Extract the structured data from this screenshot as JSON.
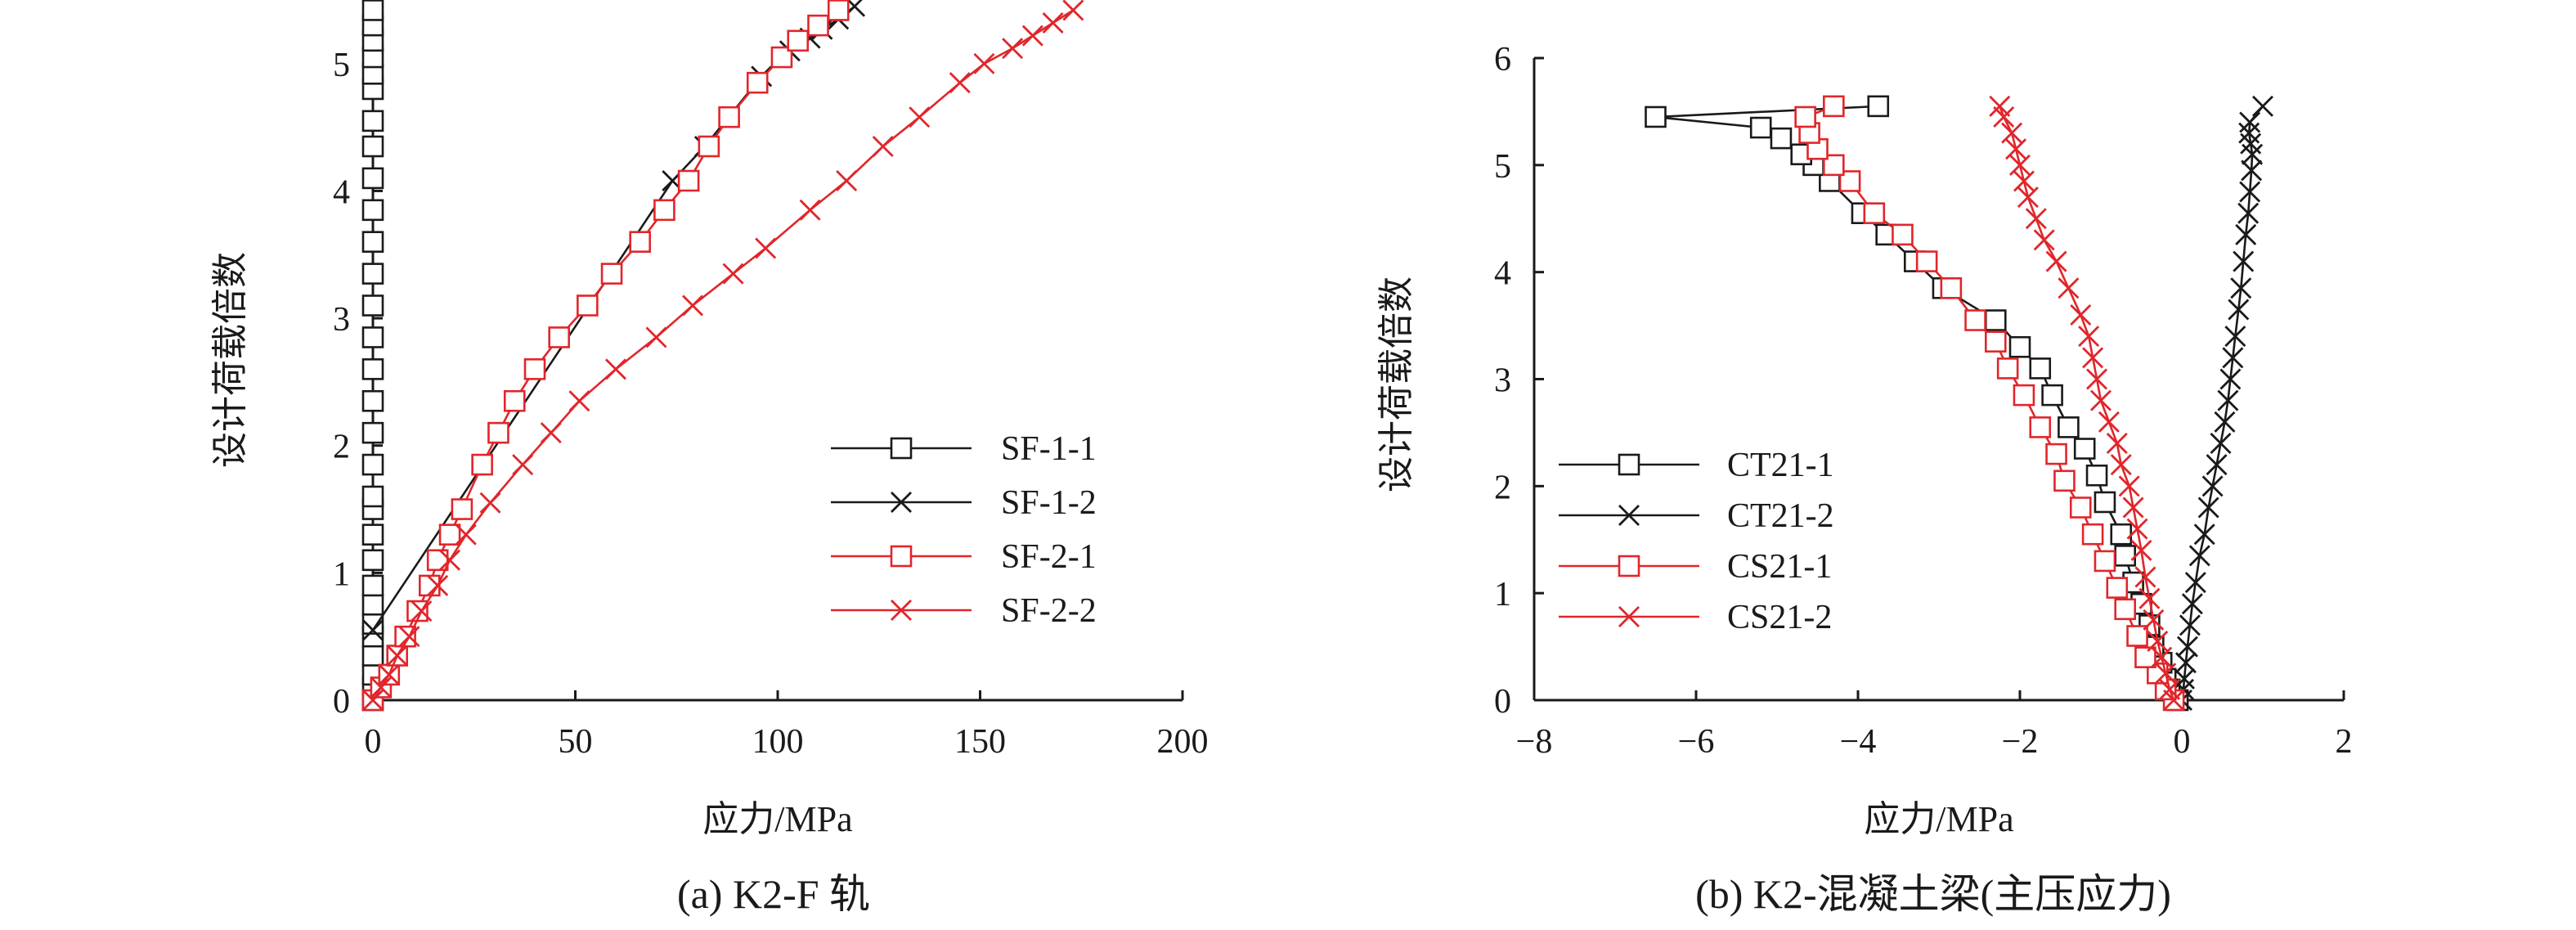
{
  "chart_data": [
    {
      "type": "line",
      "caption": "(a) K2-F 轨",
      "xlabel": "应力/MPa",
      "ylabel": "设计荷载倍数",
      "xlim": [
        0,
        200
      ],
      "ylim": [
        0,
        5.5
      ],
      "xticks": [
        0,
        50,
        100,
        150,
        200
      ],
      "yticks": [
        0,
        1,
        2,
        3,
        4,
        5
      ],
      "grid": false,
      "legend_position": "lower-right",
      "series": [
        {
          "name": "SF-1-1",
          "color": "#1a1a1a",
          "marker": "square",
          "points": [
            [
              0,
              0
            ],
            [
              0,
              0.1
            ],
            [
              0,
              0.2
            ],
            [
              0,
              0.35
            ],
            [
              0,
              0.5
            ],
            [
              0,
              0.6
            ],
            [
              0,
              0.75
            ],
            [
              0,
              0.9
            ],
            [
              0,
              1.1
            ],
            [
              0,
              1.3
            ],
            [
              0,
              1.5
            ],
            [
              0,
              1.6
            ],
            [
              0,
              1.85
            ],
            [
              0,
              2.1
            ],
            [
              0,
              2.35
            ],
            [
              0,
              2.6
            ],
            [
              0,
              2.85
            ],
            [
              0,
              3.1
            ],
            [
              0,
              3.35
            ],
            [
              0,
              3.6
            ],
            [
              0,
              3.85
            ],
            [
              0,
              4.1
            ],
            [
              0,
              4.35
            ],
            [
              0,
              4.55
            ],
            [
              0,
              4.8
            ],
            [
              0,
              4.92
            ],
            [
              0,
              5.05
            ],
            [
              0,
              5.18
            ],
            [
              0,
              5.3
            ],
            [
              0,
              5.42
            ]
          ]
        },
        {
          "name": "SF-1-2",
          "color": "#1a1a1a",
          "marker": "x",
          "points": [
            [
              0,
              0.55
            ],
            [
              74,
              4.08
            ],
            [
              82,
              4.35
            ],
            [
              96,
              4.9
            ],
            [
              103,
              5.1
            ],
            [
              108,
              5.2
            ],
            [
              111,
              5.27
            ],
            [
              115,
              5.35
            ],
            [
              119,
              5.45
            ]
          ]
        },
        {
          "name": "SF-2-1",
          "color": "#e0262b",
          "marker": "square",
          "points": [
            [
              0,
              0
            ],
            [
              2,
              0.1
            ],
            [
              4,
              0.2
            ],
            [
              6,
              0.35
            ],
            [
              8,
              0.5
            ],
            [
              11,
              0.7
            ],
            [
              14,
              0.9
            ],
            [
              16,
              1.1
            ],
            [
              19,
              1.3
            ],
            [
              22,
              1.5
            ],
            [
              27,
              1.85
            ],
            [
              31,
              2.1
            ],
            [
              35,
              2.35
            ],
            [
              40,
              2.6
            ],
            [
              46,
              2.85
            ],
            [
              53,
              3.1
            ],
            [
              59,
              3.35
            ],
            [
              66,
              3.6
            ],
            [
              72,
              3.85
            ],
            [
              78,
              4.08
            ],
            [
              83,
              4.35
            ],
            [
              88,
              4.58
            ],
            [
              95,
              4.85
            ],
            [
              101,
              5.05
            ],
            [
              105,
              5.18
            ],
            [
              110,
              5.3
            ],
            [
              115,
              5.42
            ]
          ]
        },
        {
          "name": "SF-2-2",
          "color": "#e0262b",
          "marker": "x",
          "points": [
            [
              0,
              0
            ],
            [
              2,
              0.1
            ],
            [
              4,
              0.2
            ],
            [
              6,
              0.35
            ],
            [
              9,
              0.5
            ],
            [
              12,
              0.7
            ],
            [
              16,
              0.9
            ],
            [
              19,
              1.1
            ],
            [
              23,
              1.3
            ],
            [
              29,
              1.55
            ],
            [
              37,
              1.85
            ],
            [
              44,
              2.1
            ],
            [
              51,
              2.35
            ],
            [
              60,
              2.6
            ],
            [
              70,
              2.85
            ],
            [
              79,
              3.1
            ],
            [
              89,
              3.35
            ],
            [
              97,
              3.55
            ],
            [
              108,
              3.85
            ],
            [
              117,
              4.08
            ],
            [
              126,
              4.35
            ],
            [
              135,
              4.58
            ],
            [
              145,
              4.85
            ],
            [
              151,
              5.0
            ],
            [
              158,
              5.12
            ],
            [
              163,
              5.22
            ],
            [
              168,
              5.32
            ],
            [
              173,
              5.42
            ]
          ]
        }
      ]
    },
    {
      "type": "line",
      "caption": "(b) K2-混凝土梁(主压应力)",
      "xlabel": "应力/MPa",
      "ylabel": "设计荷载倍数",
      "xlim": [
        -8,
        2
      ],
      "ylim": [
        0,
        6
      ],
      "xticks": [
        -8,
        -6,
        -4,
        -2,
        0,
        2
      ],
      "xtick_labels": [
        "−8",
        "−6",
        "−4",
        "−2",
        "0",
        "2"
      ],
      "yticks": [
        0,
        1,
        2,
        3,
        4,
        5,
        6
      ],
      "grid": false,
      "legend_position": "lower-left",
      "series": [
        {
          "name": "CT21-1",
          "color": "#1a1a1a",
          "marker": "square",
          "points": [
            [
              -0.05,
              0
            ],
            [
              -0.15,
              0.1
            ],
            [
              -0.2,
              0.2
            ],
            [
              -0.25,
              0.35
            ],
            [
              -0.35,
              0.5
            ],
            [
              -0.4,
              0.7
            ],
            [
              -0.5,
              0.9
            ],
            [
              -0.6,
              1.1
            ],
            [
              -0.7,
              1.35
            ],
            [
              -0.75,
              1.55
            ],
            [
              -0.95,
              1.85
            ],
            [
              -1.05,
              2.1
            ],
            [
              -1.2,
              2.35
            ],
            [
              -1.4,
              2.55
            ],
            [
              -1.6,
              2.85
            ],
            [
              -1.75,
              3.1
            ],
            [
              -2.0,
              3.3
            ],
            [
              -2.3,
              3.55
            ],
            [
              -2.95,
              3.85
            ],
            [
              -3.3,
              4.1
            ],
            [
              -3.65,
              4.35
            ],
            [
              -3.95,
              4.55
            ],
            [
              -4.35,
              4.85
            ],
            [
              -4.55,
              5.0
            ],
            [
              -4.7,
              5.1
            ],
            [
              -4.95,
              5.25
            ],
            [
              -5.2,
              5.35
            ],
            [
              -6.5,
              5.45
            ],
            [
              -3.75,
              5.55
            ]
          ]
        },
        {
          "name": "CT21-2",
          "color": "#1a1a1a",
          "marker": "x",
          "points": [
            [
              0,
              0
            ],
            [
              0.02,
              0.1
            ],
            [
              0.03,
              0.2
            ],
            [
              0.05,
              0.35
            ],
            [
              0.07,
              0.5
            ],
            [
              0.1,
              0.7
            ],
            [
              0.13,
              0.9
            ],
            [
              0.17,
              1.1
            ],
            [
              0.22,
              1.35
            ],
            [
              0.28,
              1.55
            ],
            [
              0.33,
              1.8
            ],
            [
              0.38,
              2.0
            ],
            [
              0.43,
              2.2
            ],
            [
              0.48,
              2.4
            ],
            [
              0.53,
              2.6
            ],
            [
              0.57,
              2.8
            ],
            [
              0.6,
              3.0
            ],
            [
              0.63,
              3.2
            ],
            [
              0.66,
              3.4
            ],
            [
              0.7,
              3.65
            ],
            [
              0.73,
              3.85
            ],
            [
              0.76,
              4.1
            ],
            [
              0.79,
              4.35
            ],
            [
              0.82,
              4.55
            ],
            [
              0.84,
              4.75
            ],
            [
              0.86,
              4.95
            ],
            [
              0.87,
              5.1
            ],
            [
              0.85,
              5.2
            ],
            [
              0.83,
              5.3
            ],
            [
              0.84,
              5.4
            ],
            [
              1.0,
              5.55
            ]
          ]
        },
        {
          "name": "CS21-1",
          "color": "#e0262b",
          "marker": "square",
          "points": [
            [
              -0.1,
              0
            ],
            [
              -0.2,
              0.1
            ],
            [
              -0.3,
              0.25
            ],
            [
              -0.45,
              0.4
            ],
            [
              -0.55,
              0.6
            ],
            [
              -0.7,
              0.85
            ],
            [
              -0.8,
              1.05
            ],
            [
              -0.95,
              1.3
            ],
            [
              -1.1,
              1.55
            ],
            [
              -1.25,
              1.8
            ],
            [
              -1.45,
              2.05
            ],
            [
              -1.55,
              2.3
            ],
            [
              -1.75,
              2.55
            ],
            [
              -1.95,
              2.85
            ],
            [
              -2.15,
              3.1
            ],
            [
              -2.3,
              3.35
            ],
            [
              -2.55,
              3.55
            ],
            [
              -2.85,
              3.85
            ],
            [
              -3.15,
              4.1
            ],
            [
              -3.45,
              4.35
            ],
            [
              -3.8,
              4.55
            ],
            [
              -4.1,
              4.85
            ],
            [
              -4.3,
              5.0
            ],
            [
              -4.5,
              5.15
            ],
            [
              -4.6,
              5.3
            ],
            [
              -4.65,
              5.45
            ],
            [
              -4.3,
              5.55
            ]
          ]
        },
        {
          "name": "CS21-2",
          "color": "#e0262b",
          "marker": "x",
          "points": [
            [
              -0.1,
              0
            ],
            [
              -0.15,
              0.1
            ],
            [
              -0.2,
              0.25
            ],
            [
              -0.25,
              0.4
            ],
            [
              -0.3,
              0.55
            ],
            [
              -0.35,
              0.75
            ],
            [
              -0.4,
              0.95
            ],
            [
              -0.45,
              1.15
            ],
            [
              -0.5,
              1.4
            ],
            [
              -0.55,
              1.6
            ],
            [
              -0.6,
              1.8
            ],
            [
              -0.65,
              2.0
            ],
            [
              -0.75,
              2.2
            ],
            [
              -0.8,
              2.4
            ],
            [
              -0.9,
              2.6
            ],
            [
              -1.0,
              2.8
            ],
            [
              -1.05,
              3.0
            ],
            [
              -1.1,
              3.2
            ],
            [
              -1.15,
              3.4
            ],
            [
              -1.25,
              3.6
            ],
            [
              -1.4,
              3.85
            ],
            [
              -1.55,
              4.1
            ],
            [
              -1.7,
              4.3
            ],
            [
              -1.8,
              4.5
            ],
            [
              -1.9,
              4.7
            ],
            [
              -1.95,
              4.85
            ],
            [
              -2.0,
              5.0
            ],
            [
              -2.05,
              5.15
            ],
            [
              -2.1,
              5.3
            ],
            [
              -2.2,
              5.45
            ],
            [
              -2.25,
              5.55
            ]
          ]
        }
      ]
    }
  ]
}
